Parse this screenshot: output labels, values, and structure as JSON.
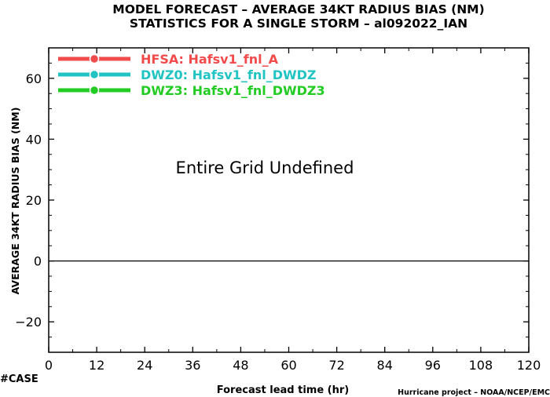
{
  "title_line1": "MODEL FORECAST – AVERAGE 34KT RADIUS BIAS (NM)",
  "title_line2": "STATISTICS FOR A SINGLE STORM – al092022_IAN",
  "center_message": "Entire Grid Undefined",
  "case_label": "#CASE",
  "credit": "Hurricane project – NOAA/NCEP/EMC",
  "colors": {
    "hfsa": "#f24b4b",
    "dwz0": "#22c3c3",
    "dwz3": "#22cc22",
    "case": "#22c3c3"
  },
  "chart_data": {
    "type": "line",
    "xlabel": "Forecast lead time (hr)",
    "ylabel": "AVERAGE 34KT RADIUS BIAS (NM)",
    "xlim": [
      0,
      120
    ],
    "ylim": [
      -30,
      70
    ],
    "xticks": [
      0,
      12,
      24,
      36,
      48,
      60,
      72,
      84,
      96,
      108,
      120
    ],
    "yticks": [
      -20,
      0,
      20,
      40,
      60
    ],
    "ytick_labels": [
      "−20",
      "0",
      "20",
      "40",
      "60"
    ],
    "zero_line": 0,
    "grid": false,
    "legend_position": "top-left",
    "series": [
      {
        "name": "HFSA: Hafsv1_fnl_A",
        "color": "#f24b4b",
        "x": [],
        "y": []
      },
      {
        "name": "DWZ0: Hafsv1_fnl_DWDZ",
        "color": "#22c3c3",
        "x": [],
        "y": []
      },
      {
        "name": "DWZ3: Hafsv1_fnl_DWDZ3",
        "color": "#22cc22",
        "x": [],
        "y": []
      }
    ]
  }
}
